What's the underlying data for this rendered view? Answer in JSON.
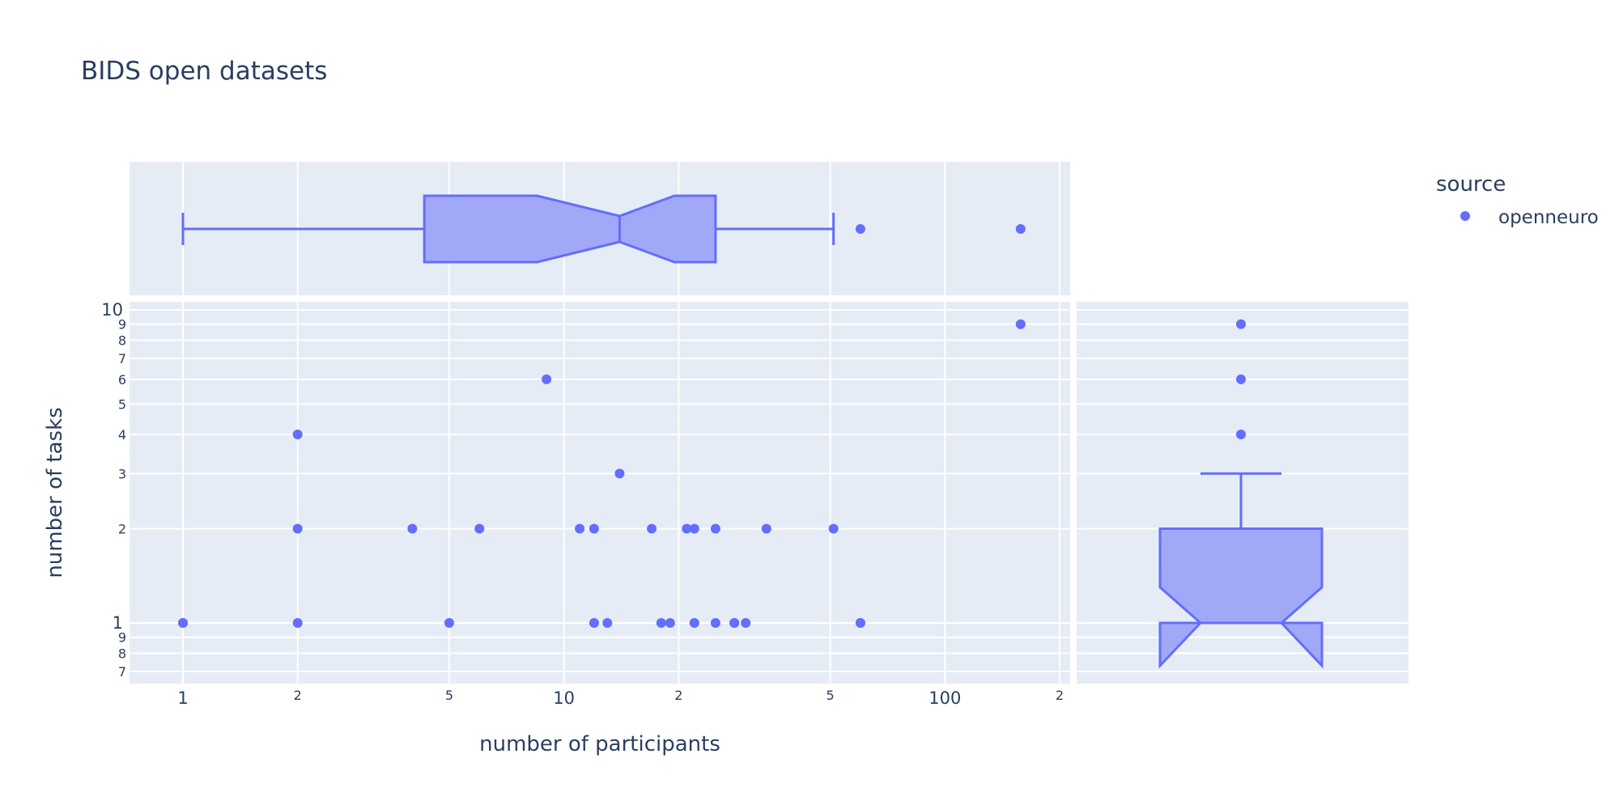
{
  "chart_data": {
    "type": "scatter",
    "title": "BIDS open datasets",
    "xlabel": "number of participants",
    "ylabel": "number of tasks",
    "xaxis": {
      "scale": "log",
      "range": [
        0.73,
        210
      ],
      "major_ticks": [
        "1",
        "10",
        "100"
      ],
      "minor_ticks": [
        "2",
        "5",
        "2",
        "5",
        "2"
      ]
    },
    "yaxis": {
      "scale": "log",
      "range": [
        0.67,
        10.2
      ],
      "major_ticks": [
        "1",
        "10"
      ],
      "minor_ticks": [
        "7",
        "8",
        "9",
        "2",
        "3",
        "4",
        "5",
        "6",
        "7",
        "8",
        "9"
      ]
    },
    "grid": true,
    "legend": {
      "title": "source",
      "entries": [
        "openneuro"
      ],
      "position": "top-right"
    },
    "colors": {
      "marker": "#636efa",
      "box_fill": "#a1a8f8",
      "plot_bg": "#e5ecf6",
      "grid": "#ffffff",
      "text": "#2a3f5f"
    },
    "series": [
      {
        "name": "openneuro",
        "x": [
          1,
          1,
          2,
          2,
          2,
          4,
          5,
          6,
          9,
          11,
          12,
          12,
          13,
          14,
          17,
          18,
          19,
          21,
          22,
          22,
          25,
          25,
          28,
          28,
          30,
          34,
          51,
          60,
          60,
          158
        ],
        "y": [
          1,
          1,
          1,
          2,
          4,
          2,
          1,
          2,
          6,
          2,
          2,
          1,
          1,
          3,
          2,
          1,
          1,
          2,
          2,
          1,
          2,
          1,
          1,
          1,
          1,
          2,
          2,
          1,
          1,
          9
        ]
      }
    ],
    "marginal_x_box": {
      "whisker_low": 1,
      "q1": 4.3,
      "median": 14,
      "q3": 25,
      "whisker_high": 51,
      "notch_low": 8.5,
      "notch_high": 19.5,
      "outliers": [
        60,
        158
      ]
    },
    "marginal_y_box": {
      "whisker_low": 1,
      "q1": 1,
      "median": 1,
      "q3": 2,
      "whisker_high": 3,
      "notch_low": 0.73,
      "notch_high": 1.3,
      "outliers": [
        4,
        6,
        9
      ]
    }
  }
}
